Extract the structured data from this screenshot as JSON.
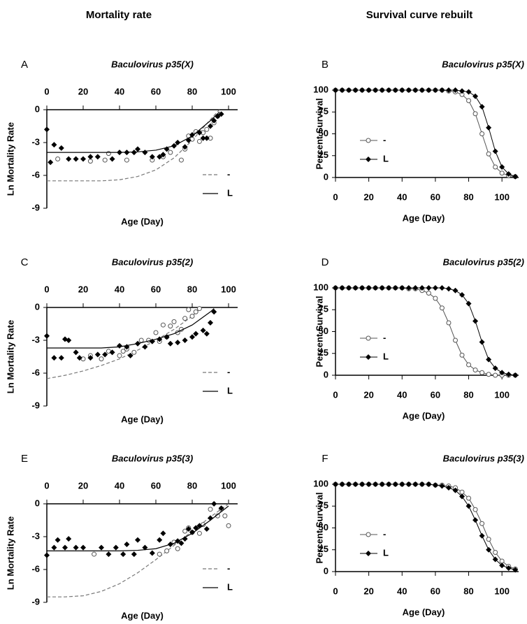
{
  "headers": [
    "Mortality rate",
    "Survival curve rebuilt"
  ],
  "chart_data": [
    {
      "type": "scatter",
      "panel": "A",
      "title": "Baculovirus p35(X)",
      "x_label": "Age (Day)",
      "y_label": "Ln Mortality Rate",
      "xlim": [
        0,
        105
      ],
      "xticks": [
        0,
        20,
        40,
        60,
        80,
        100
      ],
      "ylim": [
        -9,
        0
      ],
      "yticks": [
        0,
        -3,
        -6,
        -9
      ],
      "xaxis": "top",
      "series": [
        {
          "name": "-",
          "color": "#777777",
          "dash": true,
          "marker": "circle-open",
          "x": [
            6,
            24,
            32,
            34,
            44,
            58,
            64,
            68,
            74,
            76,
            78,
            80,
            82,
            84,
            86,
            88,
            90,
            92,
            94
          ],
          "values": [
            -4.5,
            -4.7,
            -4.6,
            -4.0,
            -4.6,
            -4.6,
            -4.3,
            -3.9,
            -4.6,
            -3.6,
            -2.4,
            -2.7,
            -2.0,
            -2.9,
            -2.1,
            -1.8,
            -2.6,
            -1.2,
            -0.6
          ],
          "fit_x": [
            0,
            10,
            20,
            30,
            40,
            50,
            60,
            70,
            80,
            90,
            95
          ],
          "fit_values": [
            -6.5,
            -6.5,
            -6.5,
            -6.5,
            -6.4,
            -6.1,
            -5.5,
            -4.4,
            -2.8,
            -0.9,
            0
          ]
        },
        {
          "name": "L",
          "color": "#000000",
          "dash": false,
          "marker": "diamond",
          "x": [
            0,
            2,
            4,
            8,
            12,
            16,
            20,
            24,
            28,
            36,
            40,
            44,
            48,
            50,
            54,
            58,
            62,
            64,
            66,
            70,
            72,
            76,
            78,
            80,
            84,
            86,
            88,
            90,
            92,
            94,
            96
          ],
          "values": [
            -1.8,
            -4.8,
            -3.2,
            -3.5,
            -4.5,
            -4.5,
            -4.5,
            -4.3,
            -4.3,
            -4.5,
            -3.9,
            -3.9,
            -3.9,
            -3.6,
            -3.9,
            -4.3,
            -4.3,
            -4.1,
            -3.6,
            -3.3,
            -3.0,
            -3.4,
            -2.8,
            -2.3,
            -2.1,
            -2.6,
            -2.6,
            -1.5,
            -1.0,
            -0.6,
            -0.4
          ],
          "fit_x": [
            0,
            10,
            20,
            30,
            40,
            50,
            60,
            70,
            80,
            90,
            95
          ],
          "fit_values": [
            -3.9,
            -3.9,
            -3.9,
            -3.9,
            -3.9,
            -3.85,
            -3.7,
            -3.3,
            -2.4,
            -1.0,
            -0.2
          ]
        }
      ]
    },
    {
      "type": "line",
      "panel": "B",
      "title": "Baculovirus p35(X)",
      "x_label": "Age (Day)",
      "y_label": "Percent Survival",
      "xlim": [
        0,
        110
      ],
      "xticks": [
        0,
        20,
        40,
        60,
        80,
        100
      ],
      "ylim": [
        0,
        100
      ],
      "yticks": [
        0,
        25,
        50,
        75,
        100
      ],
      "xaxis": "bottom",
      "x": [
        0,
        4,
        8,
        12,
        16,
        20,
        24,
        28,
        32,
        36,
        40,
        44,
        48,
        52,
        56,
        60,
        64,
        68,
        72,
        76,
        80,
        84,
        88,
        92,
        96,
        100,
        104,
        108
      ],
      "series": [
        {
          "name": "-",
          "color": "#555555",
          "marker": "circle-open",
          "values": [
            100,
            100,
            100,
            100,
            100,
            100,
            100,
            100,
            100,
            100,
            100,
            100,
            100,
            100,
            100,
            100,
            100,
            99,
            98,
            95,
            88,
            73,
            50,
            27,
            12,
            5,
            2,
            1
          ]
        },
        {
          "name": "L",
          "color": "#000000",
          "marker": "diamond",
          "values": [
            100,
            100,
            100,
            100,
            100,
            100,
            100,
            100,
            100,
            100,
            100,
            100,
            100,
            100,
            100,
            100,
            100,
            100,
            100,
            99,
            98,
            93,
            81,
            57,
            30,
            12,
            4,
            1
          ]
        }
      ]
    },
    {
      "type": "scatter",
      "panel": "C",
      "title": "Baculovirus p35(2)",
      "x_label": "Age (Day)",
      "y_label": "Ln Mortality Rate",
      "xlim": [
        0,
        105
      ],
      "xticks": [
        0,
        20,
        40,
        60,
        80,
        100
      ],
      "ylim": [
        -9,
        0
      ],
      "yticks": [
        0,
        -3,
        -6,
        -9
      ],
      "xaxis": "top",
      "series": [
        {
          "name": "-",
          "color": "#777777",
          "dash": true,
          "marker": "circle-open",
          "x": [
            20,
            24,
            30,
            34,
            40,
            42,
            44,
            48,
            52,
            56,
            60,
            62,
            64,
            66,
            68,
            70,
            72,
            74,
            76,
            78,
            80,
            82,
            84
          ],
          "values": [
            -4.7,
            -4.4,
            -4.7,
            -4.0,
            -4.4,
            -4.0,
            -3.8,
            -4.1,
            -3.0,
            -3.0,
            -2.3,
            -3.1,
            -1.6,
            -2.7,
            -1.7,
            -1.3,
            -2.3,
            -2.0,
            -1.0,
            -0.2,
            -0.8,
            -0.4,
            -0.1
          ],
          "fit_x": [
            0,
            10,
            20,
            30,
            40,
            50,
            60,
            70,
            80,
            85
          ],
          "fit_values": [
            -6.5,
            -6.2,
            -5.8,
            -5.3,
            -4.7,
            -3.9,
            -3.0,
            -2.0,
            -0.8,
            0
          ]
        },
        {
          "name": "L",
          "color": "#000000",
          "dash": false,
          "marker": "diamond",
          "x": [
            0,
            4,
            8,
            10,
            12,
            16,
            18,
            24,
            28,
            32,
            36,
            40,
            44,
            46,
            50,
            54,
            58,
            62,
            66,
            68,
            72,
            76,
            80,
            82,
            86,
            88,
            90,
            92
          ],
          "values": [
            -2.6,
            -4.6,
            -4.6,
            -2.9,
            -3.0,
            -4.1,
            -4.6,
            -4.6,
            -4.3,
            -4.3,
            -4.1,
            -3.5,
            -3.6,
            -4.4,
            -3.3,
            -3.6,
            -3.1,
            -2.9,
            -2.7,
            -3.3,
            -3.2,
            -3.0,
            -2.7,
            -2.4,
            -2.1,
            -2.4,
            -1.4,
            -0.4
          ],
          "fit_x": [
            0,
            10,
            20,
            30,
            40,
            50,
            60,
            70,
            80,
            90,
            92
          ],
          "fit_values": [
            -3.7,
            -3.7,
            -3.7,
            -3.7,
            -3.6,
            -3.3,
            -2.9,
            -2.4,
            -1.6,
            -0.4,
            -0.1
          ]
        }
      ]
    },
    {
      "type": "line",
      "panel": "D",
      "title": "Baculovirus p35(2)",
      "x_label": "Age (Day)",
      "y_label": "Percent Survival",
      "xlim": [
        0,
        110
      ],
      "xticks": [
        0,
        20,
        40,
        60,
        80,
        100
      ],
      "ylim": [
        0,
        100
      ],
      "yticks": [
        0,
        25,
        50,
        75,
        100
      ],
      "xaxis": "bottom",
      "x": [
        0,
        4,
        8,
        12,
        16,
        20,
        24,
        28,
        32,
        36,
        40,
        44,
        48,
        52,
        56,
        60,
        64,
        68,
        72,
        76,
        80,
        84,
        88,
        92,
        96,
        100,
        104,
        108
      ],
      "series": [
        {
          "name": "-",
          "color": "#555555",
          "marker": "circle-open",
          "values": [
            100,
            100,
            100,
            100,
            100,
            100,
            100,
            100,
            100,
            100,
            100,
            99,
            99,
            97,
            94,
            88,
            77,
            60,
            40,
            23,
            12,
            6,
            3,
            1,
            0,
            0,
            0,
            0
          ]
        },
        {
          "name": "L",
          "color": "#000000",
          "marker": "diamond",
          "values": [
            100,
            100,
            100,
            100,
            100,
            100,
            100,
            100,
            100,
            100,
            100,
            100,
            100,
            100,
            100,
            100,
            100,
            99,
            97,
            92,
            82,
            62,
            38,
            18,
            8,
            3,
            1,
            0
          ]
        }
      ]
    },
    {
      "type": "scatter",
      "panel": "E",
      "title": "Baculovirus p35(3)",
      "x_label": "Age (Day)",
      "y_label": "Ln Mortality Rate",
      "xlim": [
        0,
        105
      ],
      "xticks": [
        0,
        20,
        40,
        60,
        80,
        100
      ],
      "ylim": [
        -9,
        0
      ],
      "yticks": [
        0,
        -3,
        -6,
        -9
      ],
      "xaxis": "top",
      "series": [
        {
          "name": "-",
          "color": "#777777",
          "dash": true,
          "marker": "circle-open",
          "x": [
            26,
            62,
            66,
            70,
            72,
            76,
            78,
            80,
            84,
            86,
            90,
            94,
            96,
            98,
            100
          ],
          "values": [
            -4.6,
            -4.6,
            -4.3,
            -3.5,
            -4.1,
            -2.5,
            -2.2,
            -2.6,
            -2.7,
            -1.9,
            -0.5,
            -1.1,
            -0.5,
            -1.1,
            -2.0
          ],
          "fit_x": [
            0,
            10,
            20,
            30,
            40,
            50,
            60,
            70,
            80,
            90,
            100
          ],
          "fit_values": [
            -8.5,
            -8.5,
            -8.4,
            -8.0,
            -7.3,
            -6.3,
            -5.1,
            -3.8,
            -2.5,
            -1.2,
            0
          ]
        },
        {
          "name": "L",
          "color": "#000000",
          "dash": false,
          "marker": "diamond",
          "x": [
            0,
            4,
            6,
            10,
            12,
            16,
            20,
            30,
            34,
            38,
            42,
            44,
            48,
            50,
            54,
            58,
            62,
            64,
            68,
            72,
            74,
            76,
            78,
            80,
            82,
            84,
            88,
            90,
            92,
            96
          ],
          "values": [
            -4.7,
            -4.0,
            -3.3,
            -4.0,
            -3.2,
            -4.0,
            -4.0,
            -4.0,
            -4.6,
            -4.0,
            -4.6,
            -3.7,
            -4.6,
            -3.3,
            -4.0,
            -4.5,
            -3.3,
            -2.7,
            -3.7,
            -3.4,
            -3.6,
            -3.2,
            -2.3,
            -2.6,
            -2.2,
            -2.0,
            -2.3,
            -1.3,
            0,
            -0.4
          ],
          "fit_x": [
            0,
            10,
            20,
            30,
            40,
            50,
            60,
            70,
            80,
            90,
            100
          ],
          "fit_values": [
            -4.3,
            -4.3,
            -4.3,
            -4.3,
            -4.3,
            -4.25,
            -4.1,
            -3.6,
            -2.7,
            -1.5,
            -0.2
          ]
        }
      ]
    },
    {
      "type": "line",
      "panel": "F",
      "title": "Baculovirus p35(3)",
      "x_label": "Age (Day)",
      "y_label": "Percent Survival",
      "xlim": [
        0,
        110
      ],
      "xticks": [
        0,
        20,
        40,
        60,
        80,
        100
      ],
      "ylim": [
        0,
        100
      ],
      "yticks": [
        0,
        25,
        50,
        75,
        100
      ],
      "xaxis": "bottom",
      "x": [
        0,
        4,
        8,
        12,
        16,
        20,
        24,
        28,
        32,
        36,
        40,
        44,
        48,
        52,
        56,
        60,
        64,
        68,
        72,
        76,
        80,
        84,
        88,
        92,
        96,
        100,
        104,
        108
      ],
      "series": [
        {
          "name": "-",
          "color": "#555555",
          "marker": "circle-open",
          "values": [
            100,
            100,
            100,
            100,
            100,
            100,
            100,
            100,
            100,
            100,
            100,
            100,
            100,
            100,
            100,
            99,
            99,
            98,
            96,
            91,
            84,
            71,
            55,
            37,
            22,
            12,
            6,
            3
          ]
        },
        {
          "name": "L",
          "color": "#000000",
          "marker": "diamond",
          "values": [
            100,
            100,
            100,
            100,
            100,
            100,
            100,
            100,
            100,
            100,
            100,
            100,
            100,
            100,
            100,
            99,
            98,
            96,
            93,
            86,
            75,
            59,
            41,
            25,
            14,
            7,
            4,
            2
          ]
        }
      ]
    }
  ]
}
